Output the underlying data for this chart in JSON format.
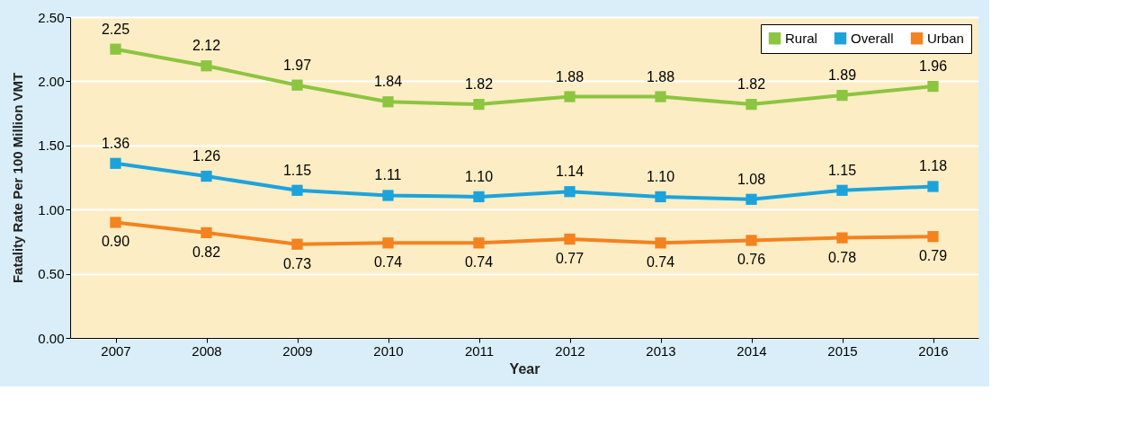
{
  "chart_data": {
    "type": "line",
    "xlabel": "Year",
    "ylabel": "Fatality Rate Per 100 Million VMT",
    "categories": [
      "2007",
      "2008",
      "2009",
      "2010",
      "2011",
      "2012",
      "2013",
      "2014",
      "2015",
      "2016"
    ],
    "series": [
      {
        "name": "Rural",
        "color": "#8cc540",
        "values": [
          2.25,
          2.12,
          1.97,
          1.84,
          1.82,
          1.88,
          1.88,
          1.82,
          1.89,
          1.96
        ],
        "value_labels": [
          "2.25",
          "2.12",
          "1.97",
          "1.84",
          "1.82",
          "1.88",
          "1.88",
          "1.82",
          "1.89",
          "1.96"
        ]
      },
      {
        "name": "Overall",
        "color": "#1ca3dc",
        "values": [
          1.36,
          1.26,
          1.15,
          1.11,
          1.1,
          1.14,
          1.1,
          1.08,
          1.15,
          1.18
        ],
        "value_labels": [
          "1.36",
          "1.26",
          "1.15",
          "1.11",
          "1.10",
          "1.14",
          "1.10",
          "1.08",
          "1.15",
          "1.18"
        ]
      },
      {
        "name": "Urban",
        "color": "#f4821f",
        "values": [
          0.9,
          0.82,
          0.73,
          0.74,
          0.74,
          0.77,
          0.74,
          0.76,
          0.78,
          0.79
        ],
        "value_labels": [
          "0.90",
          "0.82",
          "0.73",
          "0.74",
          "0.74",
          "0.77",
          "0.74",
          "0.76",
          "0.78",
          "0.79"
        ]
      }
    ],
    "ylim": [
      0,
      2.5
    ],
    "yticks": [
      {
        "value": 0,
        "label": "0.00"
      },
      {
        "value": 0.5,
        "label": "0.50"
      },
      {
        "value": 1,
        "label": "1.00"
      },
      {
        "value": 1.5,
        "label": "1.50"
      },
      {
        "value": 2,
        "label": "2.00"
      },
      {
        "value": 2.5,
        "label": "2.50"
      }
    ],
    "grid": "y",
    "legend": "top right",
    "marker": "square",
    "line_style": "solid"
  }
}
